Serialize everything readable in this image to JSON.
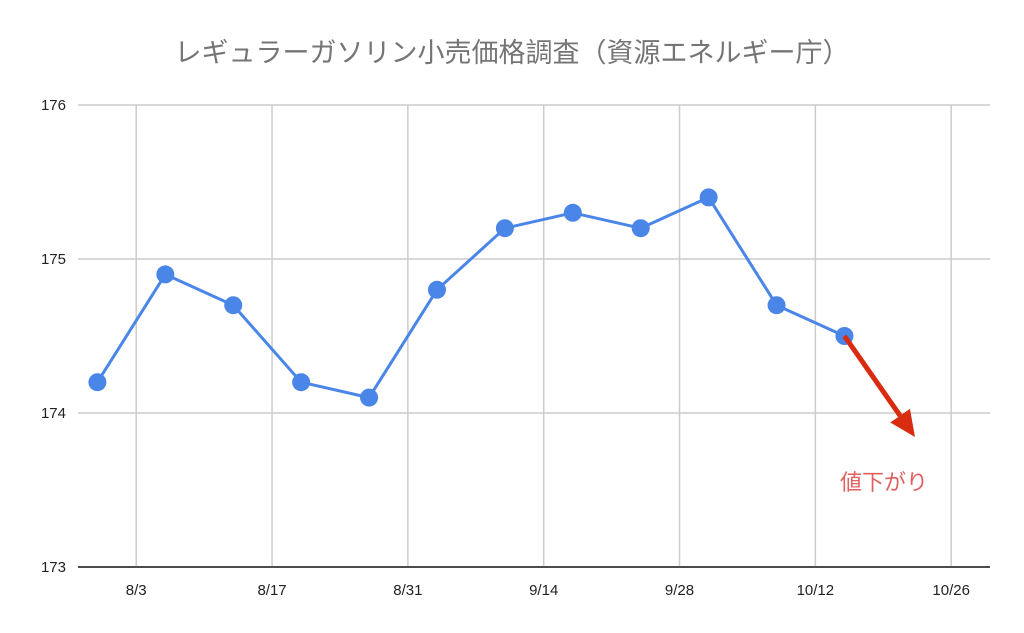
{
  "chart_data": {
    "type": "line",
    "title": "レギュラーガソリン小売価格調査（資源エネルギー庁）",
    "xlabel": "",
    "ylabel": "",
    "x_ticks": [
      "8/3",
      "8/17",
      "8/31",
      "9/14",
      "9/28",
      "10/12",
      "10/26"
    ],
    "y_ticks": [
      173,
      174,
      175,
      176
    ],
    "ylim": [
      173,
      176
    ],
    "xlim": [
      "7/28",
      "10/30"
    ],
    "grid": true,
    "legend": "none",
    "x": [
      "7/30",
      "8/6",
      "8/13",
      "8/20",
      "8/27",
      "9/3",
      "9/10",
      "9/17",
      "9/24",
      "10/1",
      "10/8",
      "10/15"
    ],
    "values": [
      174.2,
      174.9,
      174.7,
      174.2,
      174.1,
      174.8,
      175.2,
      175.3,
      175.2,
      175.4,
      174.7,
      174.5
    ],
    "line_color": "#4a86e8",
    "annotation": {
      "text": "値下がり",
      "arrow_color": "#d92b0f",
      "text_color": "#e06060",
      "arrow": "down-right from last point"
    }
  }
}
